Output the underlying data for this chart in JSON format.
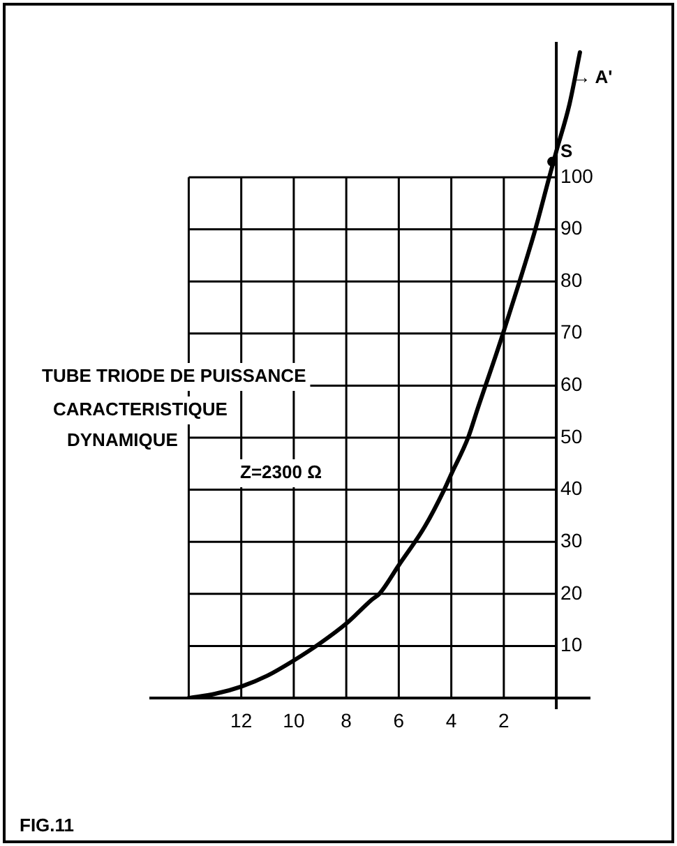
{
  "chart_data": {
    "type": "line",
    "x": [
      14,
      13,
      12,
      11,
      10,
      9,
      8,
      7,
      6.74,
      6,
      5,
      4.27,
      4,
      3.36,
      3,
      2.03,
      2,
      1.4,
      0.8,
      0.27,
      0,
      -0.5,
      -0.9
    ],
    "series": [
      {
        "color": "#000000",
        "values": [
          0,
          0.8,
          2.2,
          4.3,
          7.2,
          10.5,
          14.3,
          19,
          20,
          25.5,
          33,
          40,
          43,
          50,
          55.5,
          70,
          70.5,
          80,
          90,
          100,
          105,
          114,
          124
        ]
      }
    ],
    "xlim": [
      15.5,
      -1.3
    ],
    "ylim": [
      0,
      126
    ],
    "xticks": [
      {
        "value": 14,
        "label": null
      },
      12,
      10,
      8,
      6,
      4,
      2,
      {
        "value": 0,
        "label": null
      }
    ],
    "yticks": [
      {
        "value": 0,
        "label": null
      },
      10,
      20,
      30,
      40,
      50,
      60,
      70,
      80,
      90,
      100
    ],
    "grid": true,
    "legend": false,
    "marker": "none",
    "line_style": "solid",
    "annotations": [
      "TUBE TRIODE DE PUISSANCE",
      "CARACTERISTIQUE",
      "DYNAMIQUE",
      "Z=2300 Ω",
      "FIG.11",
      {
        "text": "S",
        "x": 0.16,
        "y": 103
      },
      {
        "text": "→ A'",
        "x": -0.4,
        "y": 119
      }
    ]
  }
}
